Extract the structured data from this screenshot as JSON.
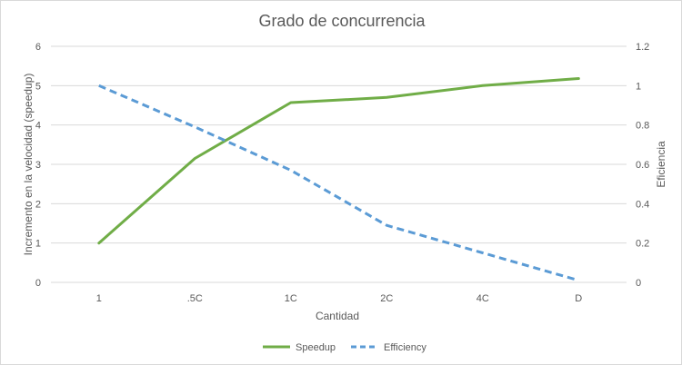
{
  "chart_data": {
    "type": "line",
    "title": "Grado de concurrencia",
    "xlabel": "Cantidad",
    "ylabel": "Incremento en la velocidad (speedup)",
    "y2label": "Eficiencia",
    "categories": [
      "1",
      ".5C",
      "1C",
      "2C",
      "4C",
      "D"
    ],
    "ylim": [
      0,
      6
    ],
    "y2lim": [
      0,
      1.2
    ],
    "yticks": [
      "0",
      "1",
      "2",
      "3",
      "4",
      "5",
      "6"
    ],
    "y2ticks": [
      "0",
      "0.2",
      "0.4",
      "0.6",
      "0.8",
      "1",
      "1.2"
    ],
    "grid": true,
    "legend_position": "bottom",
    "series": [
      {
        "name": "Speedup",
        "axis": "left",
        "values": [
          1.0,
          3.15,
          4.57,
          4.7,
          5.0,
          5.18
        ],
        "color": "#70ad47",
        "style": "solid"
      },
      {
        "name": "Efficiency",
        "axis": "right",
        "values": [
          1.0,
          0.79,
          0.57,
          0.29,
          0.15,
          0.01
        ],
        "color": "#5b9bd5",
        "style": "dashed"
      }
    ]
  }
}
